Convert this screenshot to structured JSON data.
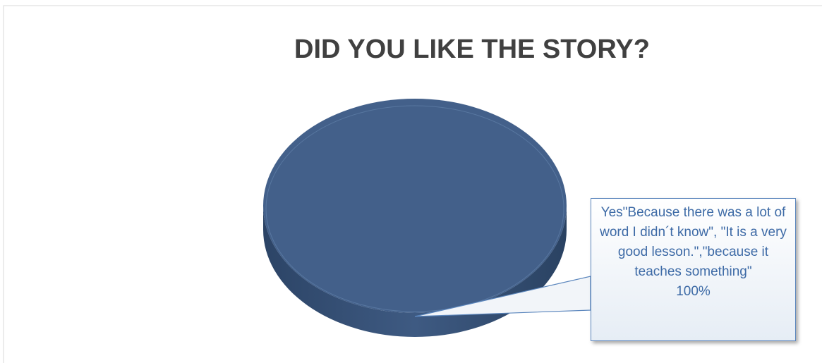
{
  "chart_data": {
    "type": "pie",
    "title": "DID YOU LIKE THE STORY?",
    "categories": [
      "Yes\"Because there was a lot of word I didn´t know\", \"It is a very good lesson.\",\"because it teaches something\""
    ],
    "values": [
      100
    ],
    "value_labels": [
      "100%"
    ],
    "colors": [
      "#43608a"
    ]
  }
}
